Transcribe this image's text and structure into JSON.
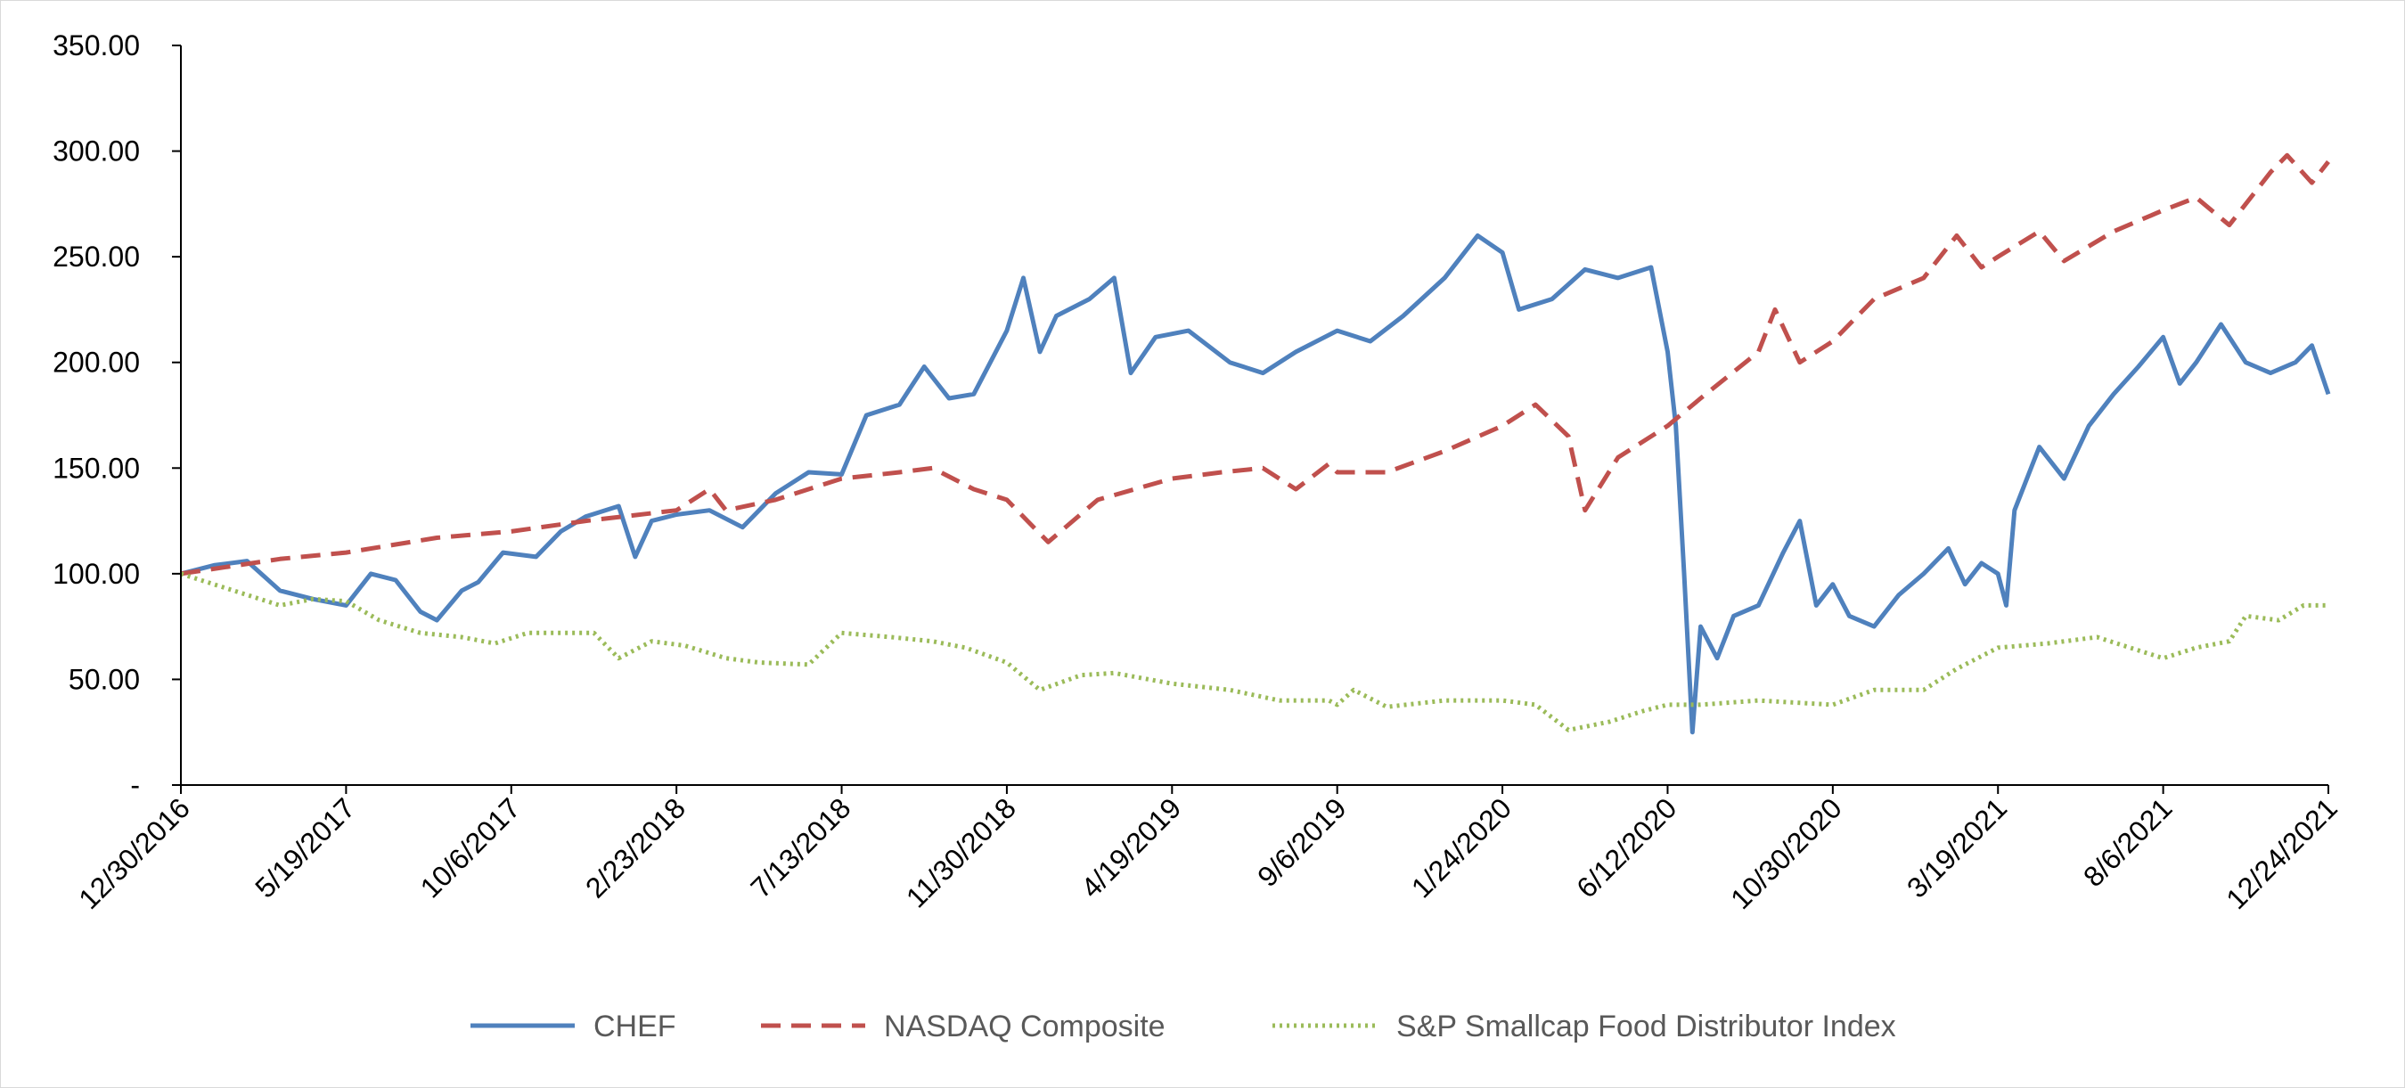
{
  "chart_data": {
    "type": "line",
    "title": "",
    "xlabel": "",
    "ylabel": "",
    "ylim": [
      0,
      350
    ],
    "xlim": [
      "12/30/2016",
      "12/24/2021"
    ],
    "x_tick_labels": [
      "12/30/2016",
      "5/19/2017",
      "10/6/2017",
      "2/23/2018",
      "7/13/2018",
      "11/30/2018",
      "4/19/2019",
      "9/6/2019",
      "1/24/2020",
      "6/12/2020",
      "10/30/2020",
      "3/19/2021",
      "8/6/2021",
      "12/24/2021"
    ],
    "y_tick_labels": [
      "-",
      "50.00",
      "100.00",
      "150.00",
      "200.00",
      "250.00",
      "300.00",
      "350.00"
    ],
    "y_ticks": [
      0,
      50,
      100,
      150,
      200,
      250,
      300,
      350
    ],
    "grid": false,
    "legend_position": "bottom",
    "series": [
      {
        "name": "CHEF",
        "color": "#4F81BD",
        "style": "solid",
        "points": [
          [
            "12/30/2016",
            100
          ],
          [
            "1/27/2017",
            104
          ],
          [
            "2/24/2017",
            106
          ],
          [
            "3/24/2017",
            92
          ],
          [
            "4/21/2017",
            88
          ],
          [
            "5/19/2017",
            85
          ],
          [
            "6/9/2017",
            100
          ],
          [
            "6/30/2017",
            97
          ],
          [
            "7/21/2017",
            82
          ],
          [
            "8/4/2017",
            78
          ],
          [
            "8/25/2017",
            92
          ],
          [
            "9/8/2017",
            96
          ],
          [
            "9/29/2017",
            110
          ],
          [
            "10/27/2017",
            108
          ],
          [
            "11/17/2017",
            120
          ],
          [
            "12/8/2017",
            127
          ],
          [
            "1/5/2018",
            132
          ],
          [
            "1/19/2018",
            108
          ],
          [
            "2/2/2018",
            125
          ],
          [
            "2/23/2018",
            128
          ],
          [
            "3/23/2018",
            130
          ],
          [
            "4/20/2018",
            122
          ],
          [
            "5/18/2018",
            138
          ],
          [
            "6/15/2018",
            148
          ],
          [
            "7/13/2018",
            147
          ],
          [
            "8/3/2018",
            175
          ],
          [
            "8/31/2018",
            180
          ],
          [
            "9/21/2018",
            198
          ],
          [
            "10/12/2018",
            183
          ],
          [
            "11/2/2018",
            185
          ],
          [
            "11/30/2018",
            215
          ],
          [
            "12/14/2018",
            240
          ],
          [
            "12/28/2018",
            205
          ],
          [
            "1/11/2019",
            222
          ],
          [
            "2/8/2019",
            230
          ],
          [
            "3/1/2019",
            240
          ],
          [
            "3/15/2019",
            195
          ],
          [
            "4/5/2019",
            212
          ],
          [
            "5/3/2019",
            215
          ],
          [
            "6/7/2019",
            200
          ],
          [
            "7/5/2019",
            195
          ],
          [
            "8/2/2019",
            205
          ],
          [
            "9/6/2019",
            215
          ],
          [
            "10/4/2019",
            210
          ],
          [
            "11/1/2019",
            222
          ],
          [
            "12/6/2019",
            240
          ],
          [
            "1/3/2020",
            260
          ],
          [
            "1/24/2020",
            252
          ],
          [
            "2/7/2020",
            225
          ],
          [
            "3/6/2020",
            230
          ],
          [
            "4/3/2020",
            244
          ],
          [
            "5/1/2020",
            240
          ],
          [
            "5/29/2020",
            245
          ],
          [
            "6/12/2020",
            205
          ],
          [
            "6/19/2020",
            170
          ],
          [
            "6/26/2020",
            100
          ],
          [
            "7/3/2020",
            25
          ],
          [
            "7/10/2020",
            75
          ],
          [
            "7/24/2020",
            60
          ],
          [
            "8/7/2020",
            80
          ],
          [
            "8/28/2020",
            85
          ],
          [
            "9/18/2020",
            110
          ],
          [
            "10/2/2020",
            125
          ],
          [
            "10/16/2020",
            85
          ],
          [
            "10/30/2020",
            95
          ],
          [
            "11/13/2020",
            80
          ],
          [
            "12/4/2020",
            75
          ],
          [
            "12/25/2020",
            90
          ],
          [
            "1/15/2021",
            100
          ],
          [
            "2/5/2021",
            112
          ],
          [
            "2/19/2021",
            95
          ],
          [
            "3/5/2021",
            105
          ],
          [
            "3/19/2021",
            100
          ],
          [
            "3/26/2021",
            85
          ],
          [
            "4/2/2021",
            130
          ],
          [
            "4/23/2021",
            160
          ],
          [
            "5/14/2021",
            145
          ],
          [
            "6/4/2021",
            170
          ],
          [
            "6/25/2021",
            185
          ],
          [
            "7/16/2021",
            198
          ],
          [
            "8/6/2021",
            212
          ],
          [
            "8/20/2021",
            190
          ],
          [
            "9/3/2021",
            200
          ],
          [
            "9/24/2021",
            218
          ],
          [
            "10/15/2021",
            200
          ],
          [
            "11/5/2021",
            195
          ],
          [
            "11/26/2021",
            200
          ],
          [
            "12/10/2021",
            208
          ],
          [
            "12/24/2021",
            185
          ]
        ]
      },
      {
        "name": "NASDAQ Composite",
        "color": "#C0504D",
        "style": "dashed",
        "points": [
          [
            "12/30/2016",
            100
          ],
          [
            "3/24/2017",
            107
          ],
          [
            "5/19/2017",
            110
          ],
          [
            "8/4/2017",
            117
          ],
          [
            "10/6/2017",
            120
          ],
          [
            "12/8/2017",
            125
          ],
          [
            "2/23/2018",
            130
          ],
          [
            "3/23/2018",
            140
          ],
          [
            "4/6/2018",
            130
          ],
          [
            "5/18/2018",
            135
          ],
          [
            "7/13/2018",
            145
          ],
          [
            "8/31/2018",
            148
          ],
          [
            "9/28/2018",
            150
          ],
          [
            "11/2/2018",
            140
          ],
          [
            "11/30/2018",
            135
          ],
          [
            "1/4/2019",
            115
          ],
          [
            "2/15/2019",
            135
          ],
          [
            "4/19/2019",
            145
          ],
          [
            "5/31/2019",
            148
          ],
          [
            "7/5/2019",
            150
          ],
          [
            "8/2/2019",
            140
          ],
          [
            "8/30/2019",
            152
          ],
          [
            "9/6/2019",
            148
          ],
          [
            "10/18/2019",
            148
          ],
          [
            "12/6/2019",
            158
          ],
          [
            "1/24/2020",
            170
          ],
          [
            "2/21/2020",
            180
          ],
          [
            "3/20/2020",
            165
          ],
          [
            "4/3/2020",
            130
          ],
          [
            "5/1/2020",
            155
          ],
          [
            "6/12/2020",
            170
          ],
          [
            "7/10/2020",
            183
          ],
          [
            "8/28/2020",
            205
          ],
          [
            "9/11/2020",
            225
          ],
          [
            "10/2/2020",
            200
          ],
          [
            "10/30/2020",
            210
          ],
          [
            "12/4/2020",
            230
          ],
          [
            "1/15/2021",
            240
          ],
          [
            "2/12/2021",
            260
          ],
          [
            "3/5/2021",
            245
          ],
          [
            "3/19/2021",
            250
          ],
          [
            "4/23/2021",
            262
          ],
          [
            "5/14/2021",
            248
          ],
          [
            "6/25/2021",
            262
          ],
          [
            "8/6/2021",
            272
          ],
          [
            "9/3/2021",
            278
          ],
          [
            "10/1/2021",
            265
          ],
          [
            "11/5/2021",
            290
          ],
          [
            "11/19/2021",
            298
          ],
          [
            "12/10/2021",
            285
          ],
          [
            "12/24/2021",
            295
          ]
        ]
      },
      {
        "name": "S&P Smallcap Food Distributor Index",
        "color": "#9BBB59",
        "style": "dotted",
        "points": [
          [
            "12/30/2016",
            100
          ],
          [
            "2/24/2017",
            90
          ],
          [
            "3/24/2017",
            85
          ],
          [
            "4/21/2017",
            88
          ],
          [
            "5/19/2017",
            87
          ],
          [
            "6/16/2017",
            78
          ],
          [
            "7/21/2017",
            72
          ],
          [
            "8/25/2017",
            70
          ],
          [
            "9/22/2017",
            67
          ],
          [
            "10/20/2017",
            72
          ],
          [
            "12/15/2017",
            72
          ],
          [
            "1/5/2018",
            60
          ],
          [
            "2/2/2018",
            68
          ],
          [
            "3/2/2018",
            66
          ],
          [
            "4/6/2018",
            60
          ],
          [
            "5/4/2018",
            58
          ],
          [
            "6/15/2018",
            57
          ],
          [
            "7/13/2018",
            72
          ],
          [
            "8/24/2018",
            70
          ],
          [
            "9/28/2018",
            68
          ],
          [
            "10/26/2018",
            65
          ],
          [
            "11/30/2018",
            58
          ],
          [
            "12/28/2018",
            45
          ],
          [
            "2/1/2019",
            52
          ],
          [
            "3/1/2019",
            53
          ],
          [
            "4/19/2019",
            48
          ],
          [
            "6/7/2019",
            45
          ],
          [
            "7/19/2019",
            40
          ],
          [
            "8/30/2019",
            40
          ],
          [
            "9/6/2019",
            38
          ],
          [
            "9/20/2019",
            45
          ],
          [
            "10/18/2019",
            37
          ],
          [
            "12/6/2019",
            40
          ],
          [
            "1/24/2020",
            40
          ],
          [
            "2/21/2020",
            38
          ],
          [
            "3/20/2020",
            26
          ],
          [
            "4/24/2020",
            30
          ],
          [
            "5/22/2020",
            35
          ],
          [
            "6/12/2020",
            38
          ],
          [
            "7/10/2020",
            38
          ],
          [
            "8/28/2020",
            40
          ],
          [
            "10/30/2020",
            38
          ],
          [
            "12/4/2020",
            45
          ],
          [
            "1/15/2021",
            45
          ],
          [
            "2/12/2021",
            55
          ],
          [
            "3/19/2021",
            65
          ],
          [
            "4/30/2021",
            67
          ],
          [
            "6/11/2021",
            70
          ],
          [
            "7/9/2021",
            65
          ],
          [
            "8/6/2021",
            60
          ],
          [
            "9/3/2021",
            65
          ],
          [
            "10/1/2021",
            68
          ],
          [
            "10/15/2021",
            80
          ],
          [
            "11/12/2021",
            78
          ],
          [
            "12/3/2021",
            85
          ],
          [
            "12/24/2021",
            85
          ]
        ]
      }
    ]
  }
}
